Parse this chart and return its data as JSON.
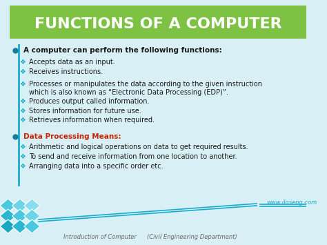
{
  "title": "FUNCTIONS OF A COMPUTER",
  "title_bg_color": "#7dc242",
  "title_text_color": "#ffffff",
  "bg_color": "#d8f0f5",
  "main_bullet_color": "#1a7a9a",
  "diamond_bullet_color": "#1aaccc",
  "red_heading_color": "#cc2200",
  "black_text_color": "#1a1a1a",
  "footer_text_color": "#666666",
  "website_color": "#1aaccc",
  "bullet1": "A computer can perform the following functions:",
  "sub_bullets": [
    "Accepts data as an input.",
    "Receives instructions.",
    "Processes or manipulates the data according to the given instruction\nwhich is also known as “Electronic Data Processing (EDP)”.",
    "Produces output called information.",
    "Stores information for future use.",
    "Retrieves information when required."
  ],
  "section2_heading": "Data Processing Means:",
  "section2_bullets": [
    "Arithmetic and logical operations on data to get required results.",
    "To send and receive information from one location to another.",
    "Arranging data into a specific order etc."
  ],
  "footer_left": "Introduction of Computer",
  "footer_middle": "(Civil Engineering Department)",
  "footer_right": "www.iloseng.com",
  "accent_color": "#1aaccc",
  "line_color": "#1aaccc"
}
